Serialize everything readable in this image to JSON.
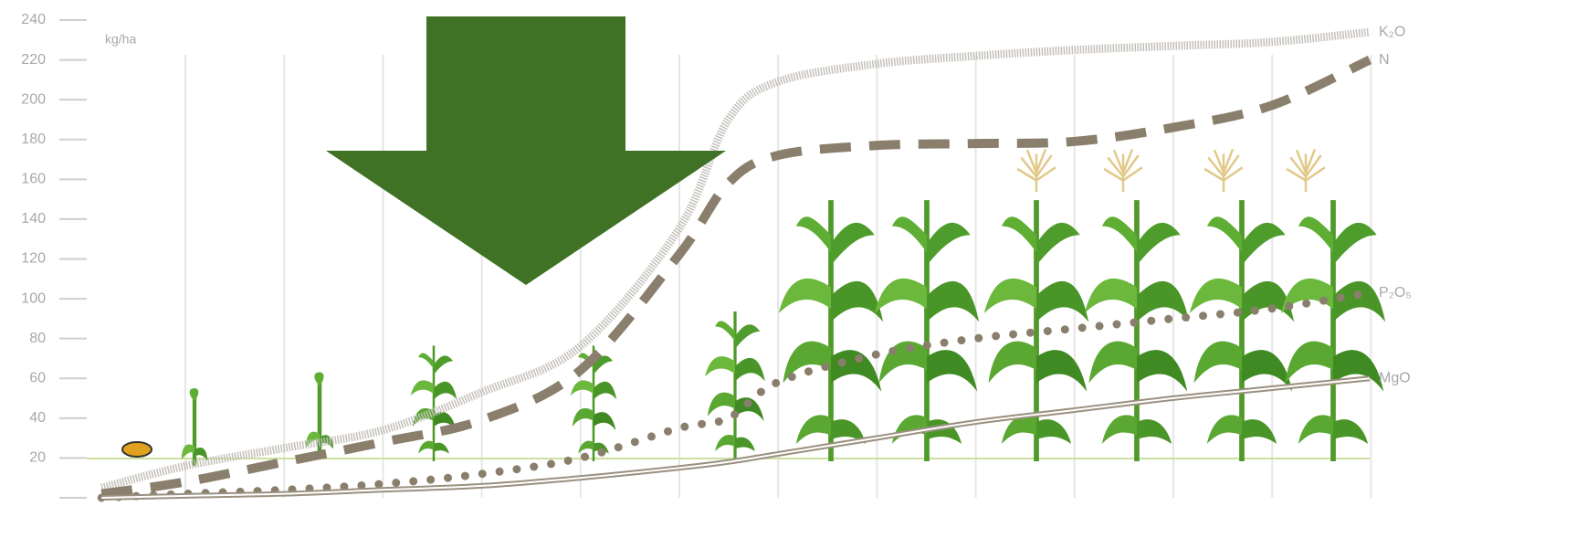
{
  "chart_data": {
    "type": "line",
    "y_label": "kg/ha",
    "x": [
      0.15,
      1,
      2,
      3,
      4,
      5,
      6,
      6.5,
      7,
      8,
      9,
      10,
      11,
      12,
      13
    ],
    "xlim": [
      0,
      13
    ],
    "ylim": [
      0,
      240
    ],
    "yticks": [
      20,
      40,
      60,
      80,
      100,
      120,
      140,
      160,
      180,
      200,
      220,
      240
    ],
    "series": [
      {
        "name": "K₂O",
        "color": "#c4c0ba",
        "style": "ticked",
        "values": [
          5,
          16,
          25,
          34,
          53,
          76,
          135,
          190,
          209,
          218,
          222,
          225,
          227,
          229,
          234
        ]
      },
      {
        "name": "N",
        "color": "#8a7f6c",
        "style": "dashed",
        "values": [
          2,
          8,
          18,
          28,
          39,
          64,
          122,
          158,
          172,
          177,
          178,
          179,
          186,
          197,
          220
        ]
      },
      {
        "name": "P₂O₅",
        "color": "#8a7f6c",
        "style": "dotted",
        "values": [
          0,
          2,
          4,
          7,
          12,
          20,
          35,
          40,
          58,
          72,
          80,
          85,
          90,
          95,
          103
        ]
      },
      {
        "name": "MgO",
        "color": "#9a907f",
        "style": "double",
        "values": [
          0,
          1,
          2,
          4,
          6,
          10,
          15,
          18,
          22,
          30,
          38,
          44,
          50,
          55,
          60
        ]
      }
    ]
  }
}
